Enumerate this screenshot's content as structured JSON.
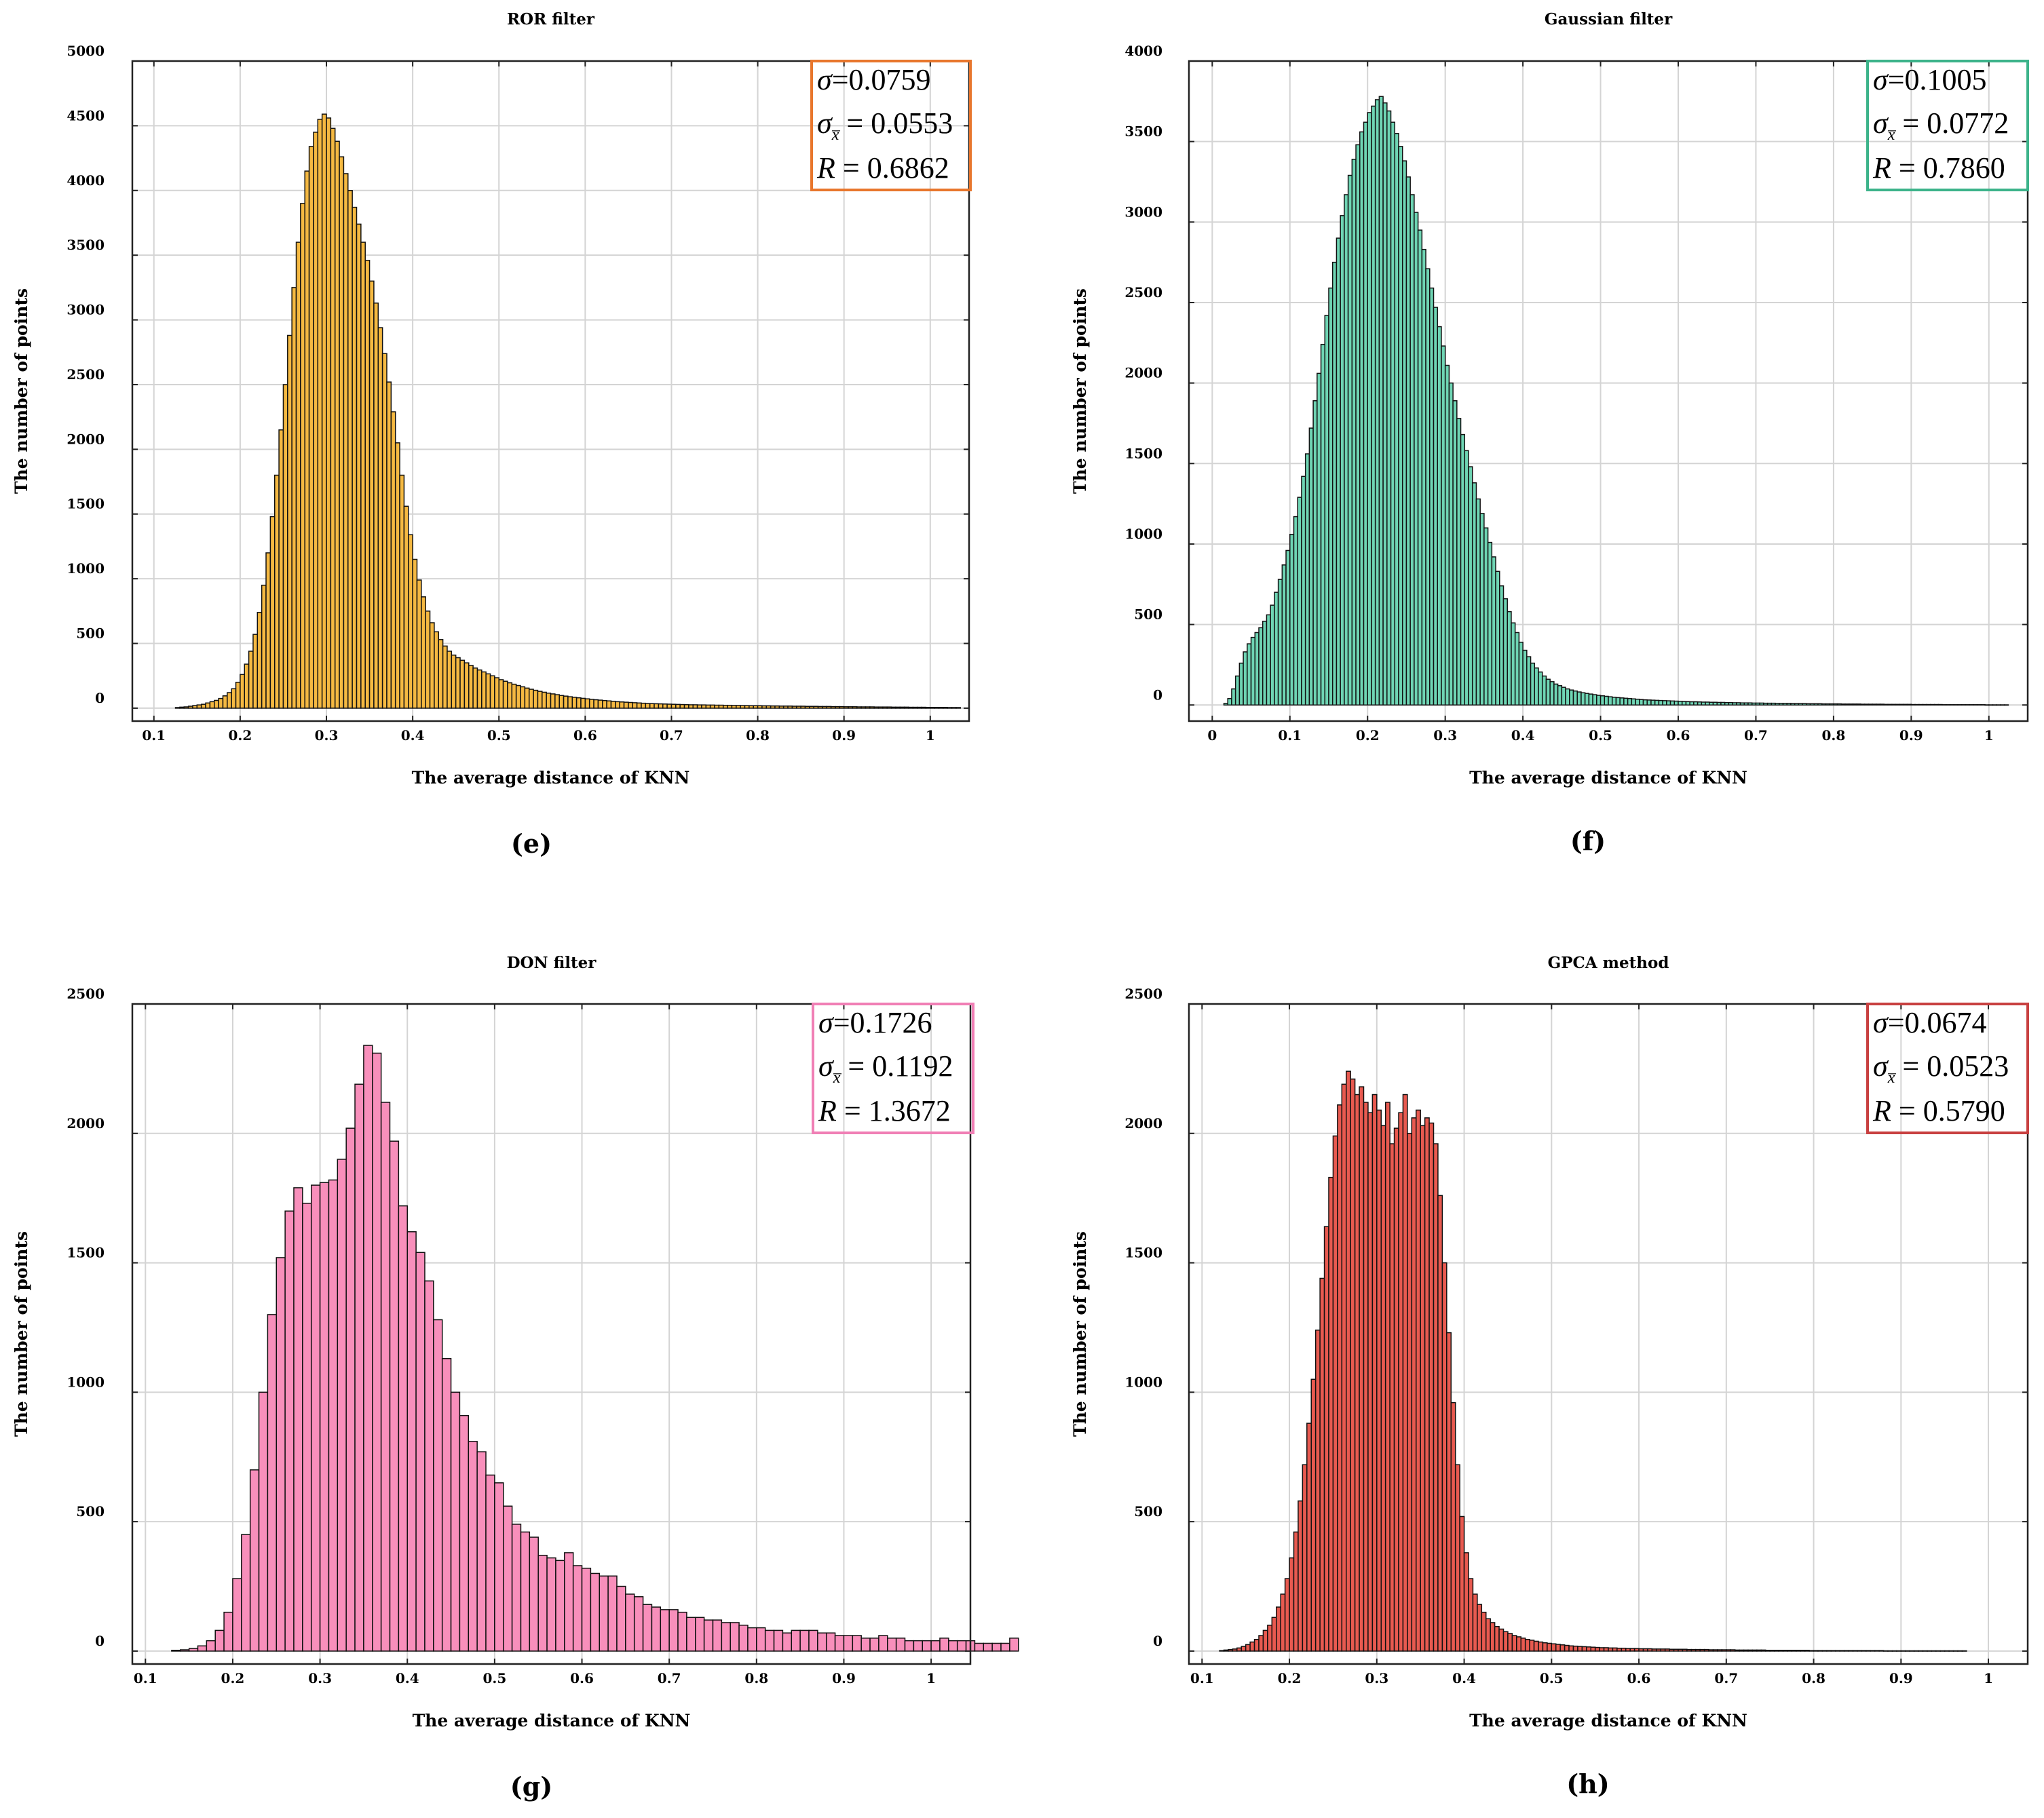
{
  "chart_data": [
    {
      "type": "bar",
      "panel": "e",
      "letter": "(e)",
      "title": "ROR filter",
      "xlabel": "The average distance of KNN",
      "ylabel": "The number of points",
      "xlim": [
        0.075,
        1.045
      ],
      "ylim": [
        -100,
        5000
      ],
      "xticks": [
        0.1,
        0.2,
        0.3,
        0.4,
        0.5,
        0.6,
        0.7,
        0.8,
        0.9,
        1
      ],
      "xtick_labels": [
        "0.1",
        "0.2",
        "0.3",
        "0.4",
        "0.5",
        "0.6",
        "0.7",
        "0.8",
        "0.9",
        "1"
      ],
      "yticks": [
        0,
        500,
        1000,
        1500,
        2000,
        2500,
        3000,
        3500,
        4000,
        4500,
        5000
      ],
      "ytick_labels": [
        "0",
        "500",
        "1000",
        "1500",
        "2000",
        "2500",
        "3000",
        "3500",
        "4000",
        "4500",
        "5000"
      ],
      "color": "#f5b942",
      "box_color": "#e8762c",
      "stats": {
        "sigma": "0.0759",
        "sigma_mean": "0.0553",
        "R": "0.6862"
      },
      "bin_width": 0.005,
      "bins": {
        "start": 0.1,
        "values": [
          0,
          0,
          0,
          0,
          0,
          5,
          8,
          10,
          15,
          20,
          25,
          30,
          40,
          50,
          60,
          75,
          95,
          120,
          150,
          200,
          260,
          340,
          440,
          570,
          740,
          950,
          1200,
          1480,
          1800,
          2150,
          2500,
          2880,
          3250,
          3600,
          3900,
          4150,
          4340,
          4450,
          4550,
          4590,
          4560,
          4480,
          4380,
          4260,
          4130,
          4000,
          3870,
          3740,
          3600,
          3460,
          3300,
          3130,
          2940,
          2740,
          2520,
          2290,
          2050,
          1800,
          1560,
          1340,
          1150,
          990,
          860,
          750,
          660,
          590,
          530,
          480,
          440,
          410,
          390,
          370,
          350,
          330,
          310,
          295,
          280,
          265,
          250,
          235,
          220,
          208,
          196,
          185,
          175,
          165,
          155,
          146,
          138,
          130,
          123,
          116,
          110,
          104,
          98,
          93,
          88,
          84,
          80,
          76,
          72,
          68,
          65,
          62,
          59,
          56,
          53,
          50,
          48,
          46,
          44,
          42,
          40,
          38,
          36,
          35,
          34,
          33,
          32,
          31,
          30,
          29,
          28,
          27,
          26,
          26,
          25,
          25,
          24,
          24,
          23,
          23,
          22,
          22,
          21,
          21,
          20,
          20,
          19,
          19,
          19,
          18,
          18,
          17,
          17,
          16,
          16,
          16,
          15,
          15,
          15,
          14,
          14,
          14,
          13,
          13,
          13,
          12,
          12,
          12,
          11,
          11,
          11,
          10,
          10,
          10,
          10,
          9,
          9,
          9,
          9,
          8,
          8,
          8,
          8,
          7,
          7,
          7,
          7,
          6,
          6,
          6,
          6,
          6,
          5,
          5,
          5
        ]
      }
    },
    {
      "type": "bar",
      "panel": "f",
      "letter": "(f)",
      "title": "Gaussian filter",
      "xlabel": "The average distance of KNN",
      "ylabel": "The number of points",
      "xlim": [
        -0.03,
        1.05
      ],
      "ylim": [
        -100,
        4000
      ],
      "xticks": [
        0,
        0.1,
        0.2,
        0.3,
        0.4,
        0.5,
        0.6,
        0.7,
        0.8,
        0.9,
        1
      ],
      "xtick_labels": [
        "0",
        "0.1",
        "0.2",
        "0.3",
        "0.4",
        "0.5",
        "0.6",
        "0.7",
        "0.8",
        "0.9",
        "1"
      ],
      "yticks": [
        0,
        500,
        1000,
        1500,
        2000,
        2500,
        3000,
        3500,
        4000
      ],
      "ytick_labels": [
        "0",
        "500",
        "1000",
        "1500",
        "2000",
        "2500",
        "3000",
        "3500",
        "4000"
      ],
      "color": "#6fd5b4",
      "box_color": "#3cb38a",
      "stats": {
        "sigma": "0.1005",
        "sigma_mean": "0.0772",
        "R": "0.7860"
      },
      "bin_width": 0.005,
      "bins": {
        "start": 0.005,
        "values": [
          0,
          0,
          10,
          40,
          100,
          180,
          260,
          330,
          380,
          420,
          450,
          480,
          520,
          560,
          620,
          700,
          780,
          870,
          960,
          1060,
          1170,
          1290,
          1420,
          1560,
          1720,
          1890,
          2060,
          2240,
          2420,
          2590,
          2750,
          2900,
          3040,
          3170,
          3290,
          3390,
          3480,
          3560,
          3620,
          3680,
          3720,
          3760,
          3780,
          3740,
          3690,
          3620,
          3550,
          3470,
          3380,
          3280,
          3170,
          3060,
          2950,
          2830,
          2710,
          2590,
          2470,
          2350,
          2230,
          2110,
          2000,
          1890,
          1780,
          1680,
          1580,
          1480,
          1380,
          1280,
          1190,
          1100,
          1010,
          920,
          830,
          740,
          660,
          580,
          510,
          450,
          390,
          340,
          300,
          260,
          230,
          205,
          180,
          160,
          145,
          130,
          120,
          110,
          100,
          93,
          87,
          81,
          76,
          72,
          68,
          64,
          60,
          57,
          54,
          51,
          48,
          46,
          44,
          42,
          40,
          38,
          36,
          34,
          32,
          31,
          30,
          29,
          28,
          27,
          26,
          25,
          24,
          23,
          22,
          21,
          20,
          20,
          19,
          18,
          18,
          17,
          17,
          16,
          16,
          15,
          15,
          14,
          14,
          13,
          13,
          13,
          12,
          12,
          12,
          11,
          11,
          11,
          10,
          10,
          10,
          10,
          9,
          9,
          9,
          9,
          8,
          8,
          8,
          8,
          7,
          7,
          7,
          7,
          7,
          6,
          6,
          6,
          6,
          6,
          5,
          5,
          5,
          5,
          5,
          5,
          4,
          4,
          4,
          4,
          4,
          4,
          4,
          3,
          3,
          3,
          3,
          3,
          3,
          3,
          3,
          2,
          2,
          2,
          2,
          2,
          2,
          2,
          2,
          2,
          2,
          2,
          1,
          1,
          1,
          1,
          1,
          1
        ]
      }
    },
    {
      "type": "bar",
      "panel": "g",
      "letter": "(g)",
      "title": "DON filter",
      "xlabel": "The average distance of KNN",
      "ylabel": "The number of points",
      "xlim": [
        0.085,
        1.045
      ],
      "ylim": [
        -50,
        2500
      ],
      "xticks": [
        0.1,
        0.2,
        0.3,
        0.4,
        0.5,
        0.6,
        0.7,
        0.8,
        0.9,
        1
      ],
      "xtick_labels": [
        "0.1",
        "0.2",
        "0.3",
        "0.4",
        "0.5",
        "0.6",
        "0.7",
        "0.8",
        "0.9",
        "1"
      ],
      "yticks": [
        0,
        500,
        1000,
        1500,
        2000,
        2500
      ],
      "ytick_labels": [
        "0",
        "500",
        "1000",
        "1500",
        "2000",
        "2500"
      ],
      "color": "#f88fbb",
      "box_color": "#f07fb5",
      "stats": {
        "sigma": "0.1726",
        "sigma_mean": "0.1192",
        "R": "1.3672"
      },
      "bin_width": 0.01,
      "bins": {
        "start": 0.1,
        "values": [
          0,
          0,
          0,
          3,
          5,
          10,
          20,
          40,
          80,
          150,
          280,
          450,
          700,
          1000,
          1300,
          1520,
          1700,
          1790,
          1730,
          1800,
          1810,
          1820,
          1900,
          2020,
          2190,
          2340,
          2310,
          2120,
          1970,
          1720,
          1620,
          1540,
          1430,
          1280,
          1130,
          1000,
          910,
          810,
          770,
          680,
          650,
          560,
          490,
          460,
          440,
          370,
          360,
          350,
          380,
          330,
          320,
          300,
          290,
          290,
          250,
          220,
          210,
          180,
          170,
          160,
          160,
          150,
          130,
          130,
          120,
          120,
          110,
          110,
          100,
          90,
          90,
          80,
          80,
          70,
          80,
          80,
          80,
          70,
          70,
          60,
          60,
          60,
          50,
          50,
          60,
          50,
          50,
          40,
          40,
          40,
          40,
          50,
          40,
          40,
          40,
          30,
          30,
          30,
          30,
          50
        ]
      }
    },
    {
      "type": "bar",
      "panel": "h",
      "letter": "(h)",
      "title": "GPCA method",
      "xlabel": "The average distance of KNN",
      "ylabel": "The number of points",
      "xlim": [
        0.085,
        1.045
      ],
      "ylim": [
        -50,
        2500
      ],
      "xticks": [
        0.1,
        0.2,
        0.3,
        0.4,
        0.5,
        0.6,
        0.7,
        0.8,
        0.9,
        1
      ],
      "xtick_labels": [
        "0.1",
        "0.2",
        "0.3",
        "0.4",
        "0.5",
        "0.6",
        "0.7",
        "0.8",
        "0.9",
        "1"
      ],
      "yticks": [
        0,
        500,
        1000,
        1500,
        2000,
        2500
      ],
      "ytick_labels": [
        "0",
        "500",
        "1000",
        "1500",
        "2000",
        "2500"
      ],
      "color": "#e85a50",
      "box_color": "#c84040",
      "stats": {
        "sigma": "0.0674",
        "sigma_mean": "0.0523",
        "R": "0.5790"
      },
      "bin_width": 0.005,
      "bins": {
        "start": 0.1,
        "values": [
          0,
          0,
          0,
          0,
          2,
          4,
          6,
          8,
          12,
          18,
          25,
          35,
          45,
          60,
          80,
          100,
          130,
          170,
          220,
          280,
          360,
          460,
          580,
          720,
          880,
          1050,
          1240,
          1440,
          1640,
          1830,
          1990,
          2110,
          2190,
          2240,
          2210,
          2150,
          2180,
          2120,
          2080,
          2150,
          2090,
          2030,
          2120,
          1960,
          2020,
          2080,
          2150,
          2000,
          2060,
          2090,
          2030,
          2060,
          2040,
          1960,
          1760,
          1500,
          1230,
          960,
          720,
          520,
          380,
          280,
          220,
          180,
          150,
          125,
          110,
          95,
          85,
          75,
          68,
          60,
          55,
          50,
          45,
          42,
          38,
          35,
          32,
          30,
          28,
          26,
          24,
          22,
          20,
          19,
          18,
          17,
          16,
          15,
          14,
          13,
          13,
          12,
          12,
          11,
          11,
          10,
          10,
          10,
          9,
          9,
          9,
          8,
          8,
          8,
          8,
          7,
          7,
          7,
          7,
          6,
          6,
          6,
          6,
          6,
          5,
          5,
          5,
          5,
          5,
          5,
          4,
          4,
          4,
          4,
          4,
          4,
          4,
          3,
          3,
          3,
          3,
          3,
          3,
          3,
          3,
          3,
          3,
          2,
          2,
          2,
          2,
          2,
          2,
          2,
          2,
          2,
          2,
          2,
          2,
          2,
          2,
          2,
          2,
          2,
          1,
          1,
          1,
          1,
          1,
          1,
          1,
          1,
          1,
          1,
          1,
          1,
          1,
          1,
          1,
          1,
          1,
          1,
          1
        ]
      }
    }
  ]
}
